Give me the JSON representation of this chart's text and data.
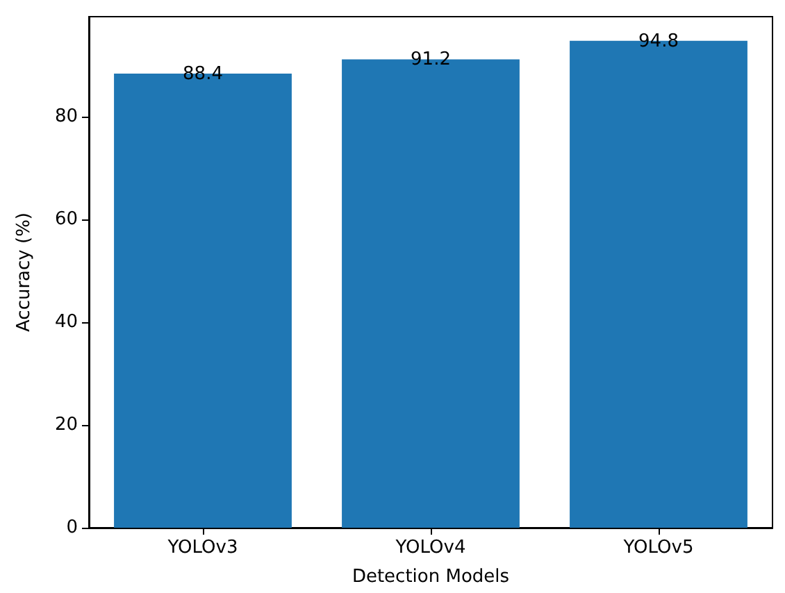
{
  "chart_data": {
    "type": "bar",
    "xlabel": "Detection Models",
    "ylabel": "Accuracy (%)",
    "categories": [
      "YOLOv3",
      "YOLOv4",
      "YOLOv5"
    ],
    "values": [
      88.4,
      91.2,
      94.8
    ],
    "color": "#1f77b4",
    "ylim": [
      0,
      99.5
    ],
    "yticks": [
      0,
      20,
      40,
      60,
      80
    ],
    "data_labels": true,
    "grid": false
  }
}
